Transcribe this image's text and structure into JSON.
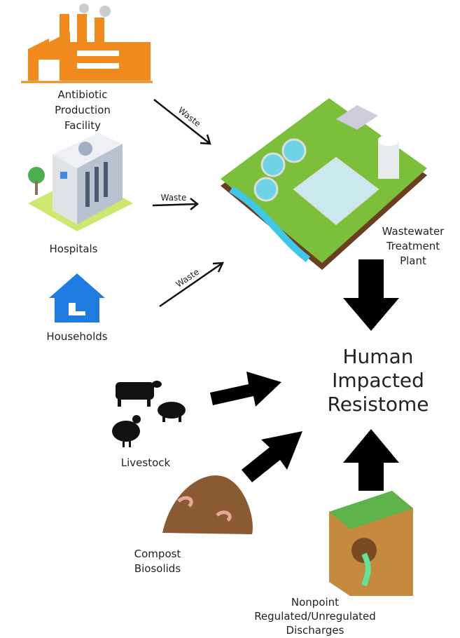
{
  "nodes": [
    {
      "lines": [
        "Antibiotic",
        "Production",
        "Facility"
      ]
    },
    {
      "lines": [
        "Hospitals"
      ]
    },
    {
      "lines": [
        "Households"
      ]
    },
    {
      "lines": [
        "Wastewater",
        "Treatment",
        "Plant"
      ]
    },
    {
      "lines": [
        "Human",
        "Impacted",
        "Resistome"
      ]
    },
    {
      "lines": [
        "Livestock"
      ]
    },
    {
      "lines": [
        "Compost",
        "Biosolids"
      ]
    },
    {
      "lines": [
        "Nonpoint",
        "Regulated/Unregulated",
        "Discharges"
      ]
    }
  ],
  "edges": [
    {
      "label": "Waste"
    },
    {
      "label": "Waste"
    },
    {
      "label": "Waste"
    }
  ]
}
